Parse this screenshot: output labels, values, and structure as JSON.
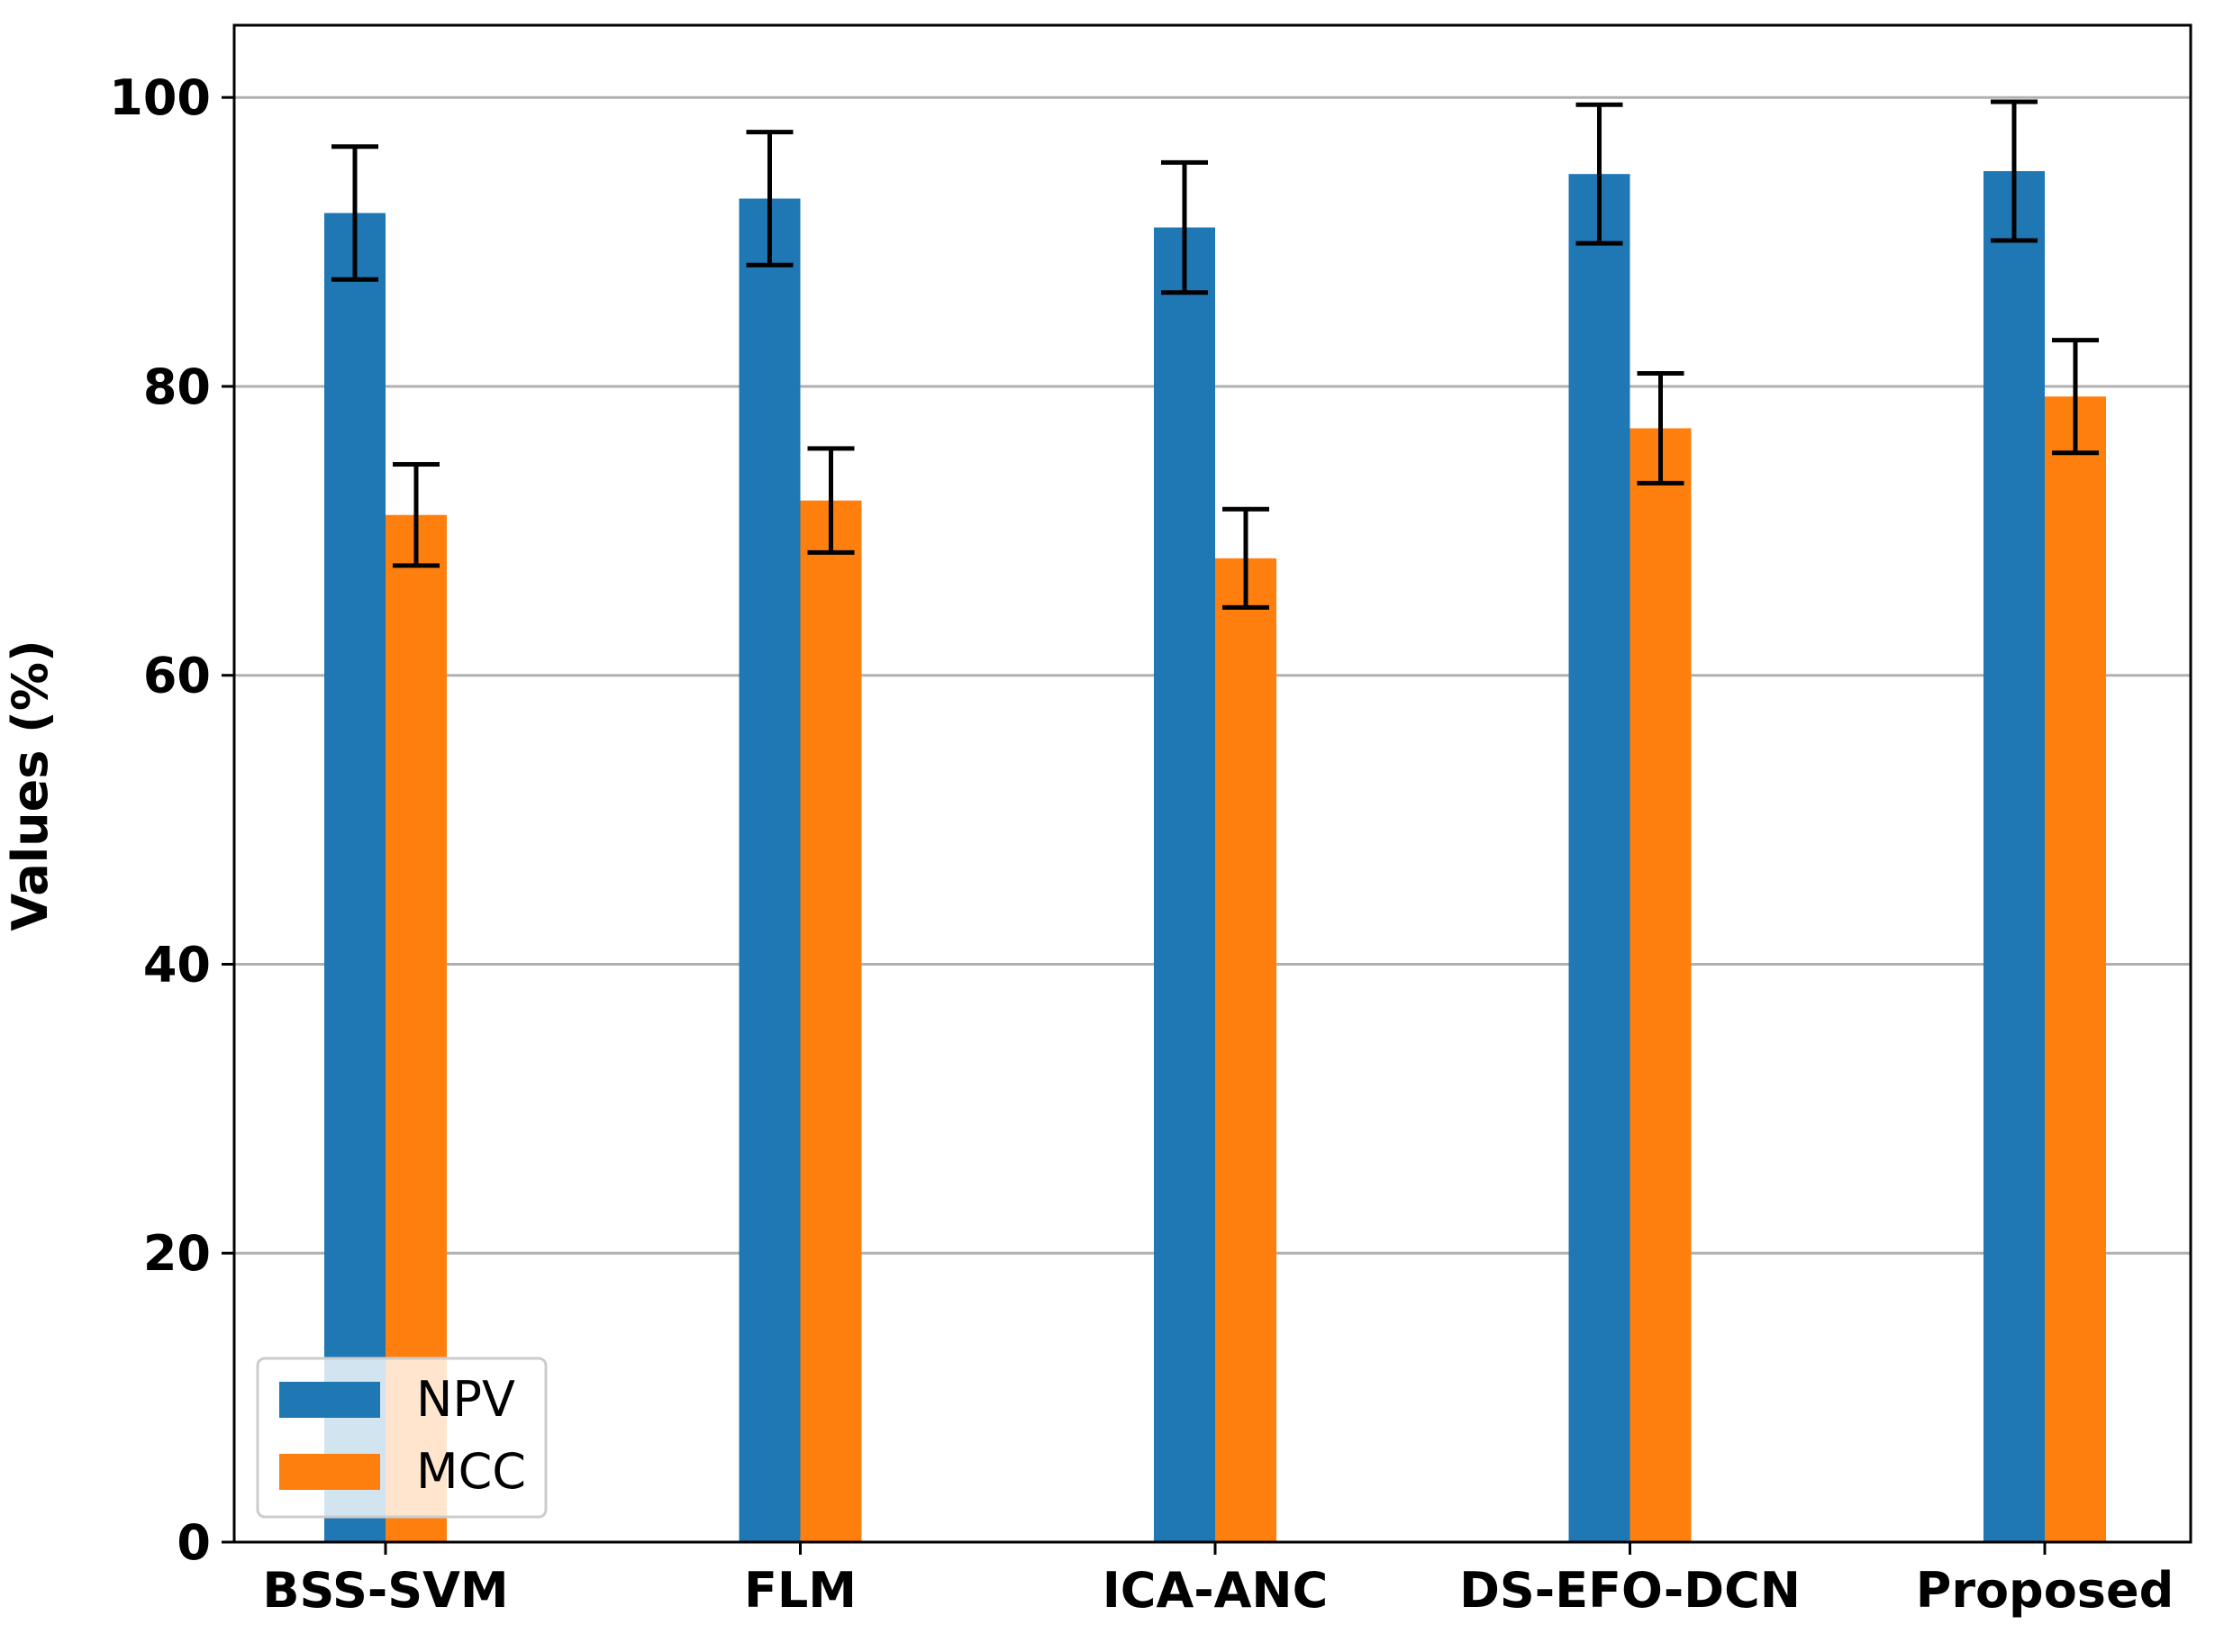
{
  "chart_data": {
    "type": "bar",
    "title": "",
    "xlabel": "",
    "ylabel": "Values (%)",
    "ylim": [
      0,
      105
    ],
    "yticks": [
      0,
      20,
      40,
      60,
      80,
      100
    ],
    "grid": "horizontal",
    "legend_position": "lower-left",
    "categories": [
      "BSS-SVM",
      "FLM",
      "ICA-ANC",
      "DS-EFO-DCN",
      "Proposed"
    ],
    "series": [
      {
        "name": "NPV",
        "color": "#1f77b4",
        "values": [
          92.0,
          93.0,
          91.0,
          94.7,
          94.9
        ],
        "error": [
          4.6,
          4.6,
          4.5,
          4.8,
          4.8
        ]
      },
      {
        "name": "MCC",
        "color": "#ff7f0e",
        "values": [
          71.1,
          72.1,
          68.1,
          77.1,
          79.3
        ],
        "error": [
          3.5,
          3.6,
          3.4,
          3.8,
          3.9
        ]
      }
    ]
  }
}
